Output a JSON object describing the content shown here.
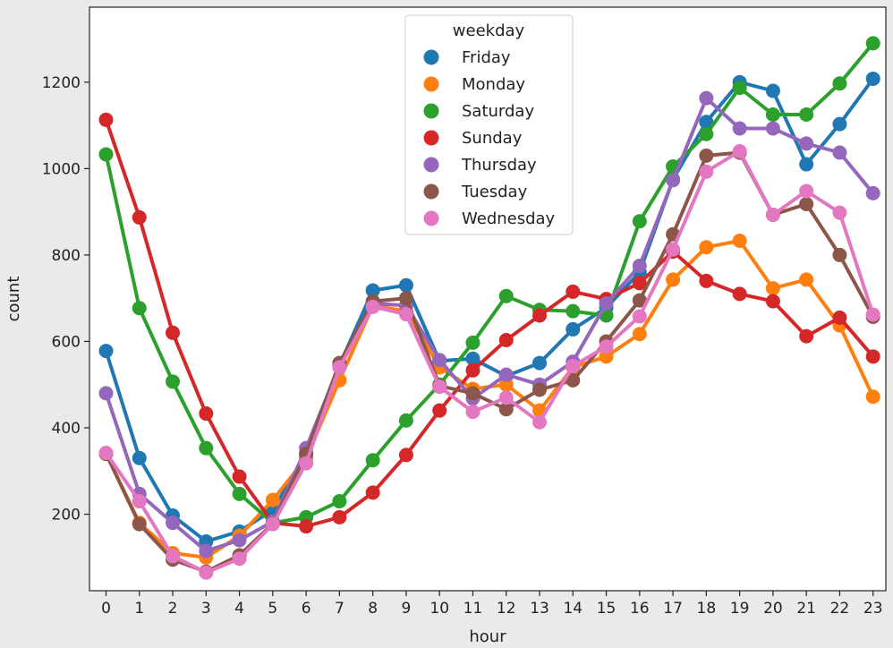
{
  "chart_data": {
    "type": "line",
    "xlabel": "hour",
    "ylabel": "count",
    "x": [
      0,
      1,
      2,
      3,
      4,
      5,
      6,
      7,
      8,
      9,
      10,
      11,
      12,
      13,
      14,
      15,
      16,
      17,
      18,
      19,
      20,
      21,
      22,
      23
    ],
    "x_tick_labels": [
      "0",
      "1",
      "2",
      "3",
      "4",
      "5",
      "6",
      "7",
      "8",
      "9",
      "10",
      "11",
      "12",
      "13",
      "14",
      "15",
      "16",
      "17",
      "18",
      "19",
      "20",
      "21",
      "22",
      "23"
    ],
    "ylim": [
      25,
      1340
    ],
    "y_ticks": [
      200,
      400,
      600,
      800,
      1000,
      1200
    ],
    "y_tick_labels": [
      "200",
      "400",
      "600",
      "800",
      "1000",
      "1200"
    ],
    "grid": false,
    "legend": {
      "title": "weekday",
      "placement": "top-center"
    },
    "series": [
      {
        "name": "Friday",
        "color": "#1f77b4",
        "values": [
          578,
          330,
          197,
          137,
          160,
          210,
          340,
          545,
          718,
          730,
          555,
          560,
          520,
          550,
          628,
          678,
          760,
          975,
          1108,
          1200,
          1180,
          1010,
          1103,
          1208
        ]
      },
      {
        "name": "Monday",
        "color": "#ff7f0e",
        "values": [
          340,
          180,
          110,
          100,
          150,
          233,
          330,
          510,
          683,
          670,
          540,
          490,
          500,
          440,
          540,
          565,
          617,
          743,
          818,
          833,
          723,
          743,
          637,
          472
        ]
      },
      {
        "name": "Saturday",
        "color": "#2ca02c",
        "values": [
          1033,
          677,
          507,
          353,
          247,
          180,
          193,
          230,
          325,
          417,
          500,
          597,
          705,
          673,
          670,
          660,
          878,
          1005,
          1080,
          1187,
          1125,
          1125,
          1197,
          1290
        ]
      },
      {
        "name": "Sunday",
        "color": "#d62728",
        "values": [
          1113,
          887,
          620,
          433,
          287,
          180,
          172,
          193,
          250,
          337,
          440,
          533,
          603,
          660,
          715,
          698,
          735,
          808,
          740,
          710,
          693,
          612,
          655,
          565
        ]
      },
      {
        "name": "Thursday",
        "color": "#9467bd",
        "values": [
          480,
          247,
          180,
          115,
          140,
          183,
          353,
          545,
          688,
          683,
          557,
          468,
          523,
          500,
          553,
          688,
          775,
          973,
          1163,
          1093,
          1093,
          1058,
          1037,
          943
        ]
      },
      {
        "name": "Tuesday",
        "color": "#8c564b",
        "values": [
          340,
          177,
          95,
          67,
          105,
          178,
          340,
          550,
          693,
          700,
          497,
          480,
          443,
          488,
          510,
          600,
          695,
          848,
          1030,
          1037,
          893,
          918,
          800,
          657
        ]
      },
      {
        "name": "Wednesday",
        "color": "#e377c2",
        "values": [
          342,
          230,
          103,
          65,
          97,
          177,
          318,
          540,
          680,
          663,
          495,
          437,
          470,
          413,
          543,
          588,
          658,
          813,
          993,
          1040,
          893,
          948,
          898,
          662
        ]
      }
    ]
  }
}
